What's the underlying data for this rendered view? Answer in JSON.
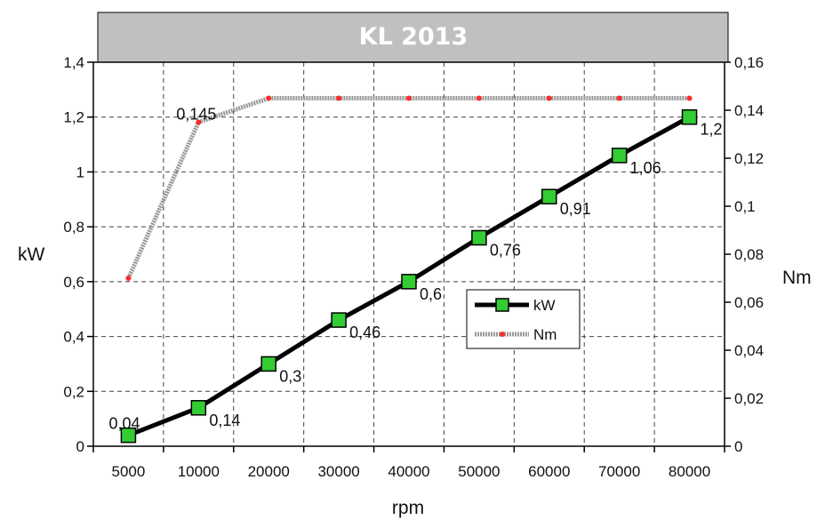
{
  "chart_data": {
    "type": "line",
    "title": "KL 2013",
    "xlabel": "rpm",
    "ylabel": "kW",
    "y2label": "Nm",
    "categories": [
      "5000",
      "10000",
      "20000",
      "30000",
      "40000",
      "50000",
      "60000",
      "70000",
      "80000"
    ],
    "ylim": [
      0,
      1.4
    ],
    "y2lim": [
      0,
      0.16
    ],
    "y_ticks": [
      "0",
      "0,2",
      "0,4",
      "0,6",
      "0,8",
      "1",
      "1,2",
      "1,4"
    ],
    "y2_ticks": [
      "0",
      "0,02",
      "0,04",
      "0,06",
      "0,08",
      "0,1",
      "0,12",
      "0,14",
      "0,16"
    ],
    "grid": true,
    "legend_position": "right-middle",
    "series": [
      {
        "name": "kW",
        "axis": "left",
        "values": [
          0.04,
          0.14,
          0.3,
          0.46,
          0.6,
          0.76,
          0.91,
          1.06,
          1.2
        ],
        "labels": [
          "0,04",
          "0,14",
          "0,3",
          "0,46",
          "0,6",
          "0,76",
          "0,91",
          "1,06",
          "1,2"
        ],
        "color": "#000000",
        "marker_color": "#33cc33"
      },
      {
        "name": "Nm",
        "axis": "right",
        "values": [
          0.07,
          0.135,
          0.145,
          0.145,
          0.145,
          0.145,
          0.145,
          0.145,
          0.145
        ],
        "labels": [
          "",
          "0,145",
          "",
          "",
          "",
          "",
          "",
          "",
          ""
        ],
        "color": "#999999",
        "marker_color": "#ff2a2a"
      }
    ],
    "colors": {
      "title_bg": "#c0c0c0",
      "grid": "#444444"
    }
  }
}
